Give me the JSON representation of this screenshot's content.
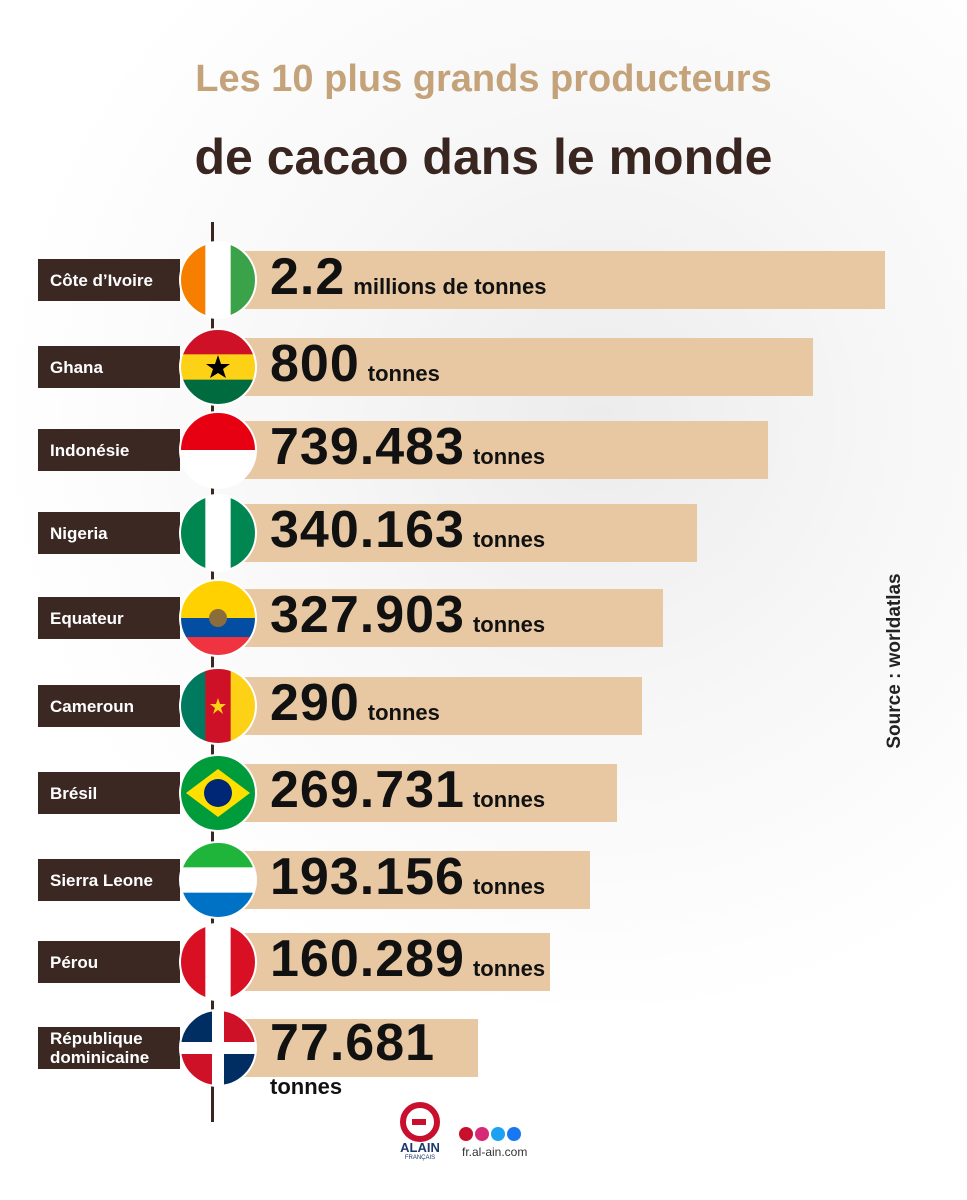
{
  "header": {
    "title_line1": "Les 10 plus grands producteurs",
    "title_line2": "de cacao dans le monde"
  },
  "rows": [
    {
      "country": "Côte d’Ivoire",
      "value": "2.2",
      "unit": "millions de tonnes"
    },
    {
      "country": "Ghana",
      "value": "800",
      "unit": "tonnes"
    },
    {
      "country": "Indonésie",
      "value": "739.483",
      "unit": "tonnes"
    },
    {
      "country": "Nigeria",
      "value": "340.163",
      "unit": "tonnes"
    },
    {
      "country": "Equateur",
      "value": "327.903",
      "unit": "tonnes"
    },
    {
      "country": "Cameroun",
      "value": "290",
      "unit": "tonnes"
    },
    {
      "country": "Brésil",
      "value": "269.731",
      "unit": "tonnes"
    },
    {
      "country": "Sierra Leone",
      "value": "193.156",
      "unit": "tonnes"
    },
    {
      "country": "Pérou",
      "value": "160.289",
      "unit": "tonnes"
    },
    {
      "country": "République dominicaine",
      "value": "77.681",
      "unit": "tonnes"
    }
  ],
  "source": "Source : worldatlas",
  "footer": {
    "logo": "ALAIN",
    "logo_sub": "FRANÇAIS",
    "site": "fr.al-ain.com"
  }
}
